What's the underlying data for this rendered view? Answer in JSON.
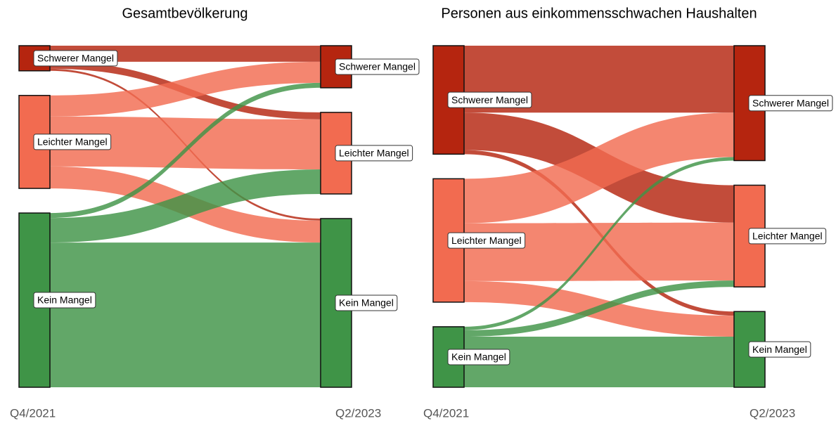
{
  "chart_data": [
    {
      "type": "sankey",
      "title": "Gesamtbevölkerung",
      "source_label": "Q4/2021",
      "target_label": "Q2/2023",
      "nodes": [
        "Schwerer Mangel",
        "Leichter Mangel",
        "Kein Mangel"
      ],
      "colors": [
        "#b5250f",
        "#f26b50",
        "#3f9447"
      ],
      "links": [
        {
          "source": 0,
          "target": 0,
          "value": 5.5
        },
        {
          "source": 0,
          "target": 1,
          "value": 2.4
        },
        {
          "source": 0,
          "target": 2,
          "value": 0.7
        },
        {
          "source": 1,
          "target": 0,
          "value": 7.2
        },
        {
          "source": 1,
          "target": 1,
          "value": 17.1
        },
        {
          "source": 1,
          "target": 2,
          "value": 7.5
        },
        {
          "source": 2,
          "target": 0,
          "value": 1.7
        },
        {
          "source": 2,
          "target": 1,
          "value": 8.4
        },
        {
          "source": 2,
          "target": 2,
          "value": 49.5
        }
      ]
    },
    {
      "type": "sankey",
      "title": "Personen aus einkommensschwachen Haushalten",
      "source_label": "Q4/2021",
      "target_label": "Q2/2023",
      "nodes": [
        "Schwerer Mangel",
        "Leichter Mangel",
        "Kein Mangel"
      ],
      "colors": [
        "#b5250f",
        "#f26b50",
        "#3f9447"
      ],
      "links": [
        {
          "source": 0,
          "target": 0,
          "value": 22.9
        },
        {
          "source": 0,
          "target": 1,
          "value": 12.8
        },
        {
          "source": 0,
          "target": 2,
          "value": 1.4
        },
        {
          "source": 1,
          "target": 0,
          "value": 15.2
        },
        {
          "source": 1,
          "target": 1,
          "value": 19.8
        },
        {
          "source": 1,
          "target": 2,
          "value": 7.2
        },
        {
          "source": 2,
          "target": 0,
          "value": 1.2
        },
        {
          "source": 2,
          "target": 1,
          "value": 2.2
        },
        {
          "source": 2,
          "target": 2,
          "value": 17.3
        }
      ]
    }
  ]
}
